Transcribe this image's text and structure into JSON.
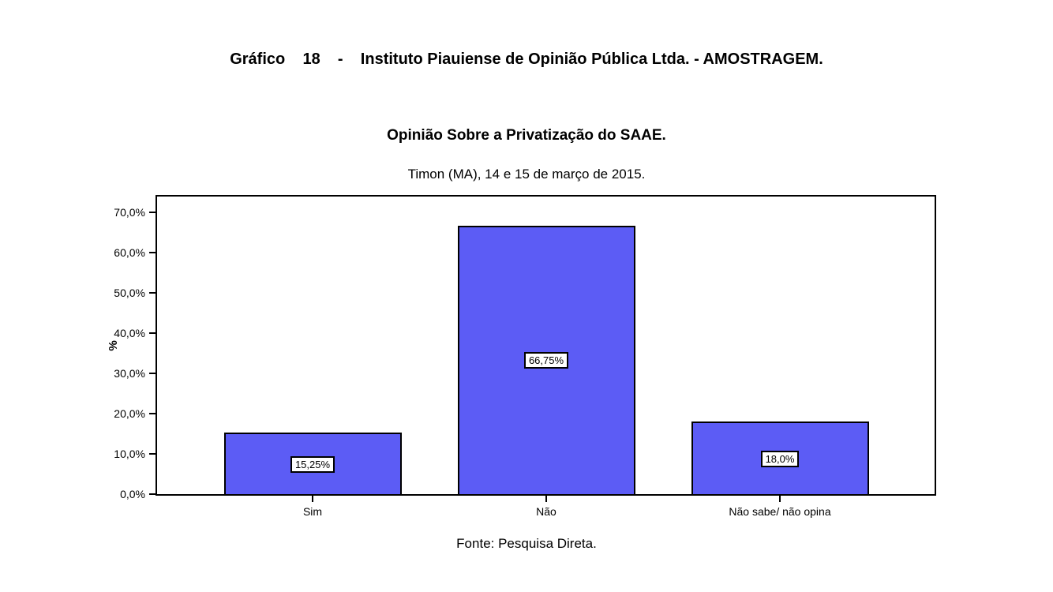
{
  "chart_data": {
    "type": "bar",
    "title": "Gráfico    18    -    Instituto Piauiense de Opinião Pública Ltda. - AMOSTRAGEM.",
    "subtitle": "Opinião Sobre a Privatização do SAAE.",
    "dateline": "Timon (MA), 14 e 15 de março de 2015.",
    "categories": [
      "Sim",
      "Não",
      "Não sabe/ não opina"
    ],
    "values": [
      15.25,
      66.75,
      18.0
    ],
    "value_labels": [
      "15,25%",
      "66,75%",
      "18,0%"
    ],
    "ylabel": "%",
    "yticks": [
      0,
      10,
      20,
      30,
      40,
      50,
      60,
      70
    ],
    "ytick_labels": [
      "0,0%",
      "10,0%",
      "20,0%",
      "30,0%",
      "40,0%",
      "50,0%",
      "60,0%",
      "70,0%"
    ],
    "ylim": [
      0,
      74
    ],
    "grid": false,
    "legend": "none",
    "bar_color": "#5c5cf5",
    "bar_border_color": "#000000",
    "source": "Fonte: Pesquisa Direta."
  }
}
